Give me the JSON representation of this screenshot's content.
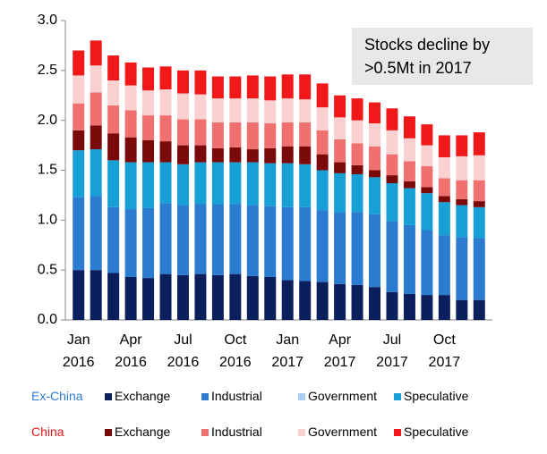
{
  "chart_data": {
    "type": "stacked-bar",
    "annotation": "Stocks decline by\n>0.5Mt in 2017",
    "categories": [
      "Jan\n2016",
      null,
      null,
      "Apr\n2016",
      null,
      null,
      "Jul\n2016",
      null,
      null,
      "Oct\n2016",
      null,
      null,
      "Jan\n2017",
      null,
      null,
      "Apr\n2017",
      null,
      null,
      "Jul\n2017",
      null,
      null,
      "Oct\n2017",
      null,
      null
    ],
    "ylim": [
      0,
      3
    ],
    "yticks": [
      {
        "value": 0,
        "label": "0.0"
      },
      0.5,
      {
        "value": 1,
        "label": "1.0"
      },
      1.5,
      {
        "value": 2,
        "label": "2.0"
      },
      2.5,
      {
        "value": 3,
        "label": "3.0"
      }
    ],
    "groups": [
      {
        "name": "Ex-China",
        "color": "#2f7ad0",
        "series": [
          {
            "name": "Exchange",
            "color": "#0b1f5c",
            "values": [
              0.5,
              0.5,
              0.47,
              0.43,
              0.42,
              0.46,
              0.45,
              0.46,
              0.45,
              0.46,
              0.44,
              0.43,
              0.4,
              0.39,
              0.38,
              0.36,
              0.35,
              0.33,
              0.28,
              0.26,
              0.25,
              0.25,
              0.2,
              0.2
            ]
          },
          {
            "name": "Industrial",
            "color": "#2b7bd0",
            "values": [
              0.73,
              0.74,
              0.66,
              0.68,
              0.7,
              0.71,
              0.7,
              0.7,
              0.71,
              0.7,
              0.71,
              0.71,
              0.73,
              0.74,
              0.72,
              0.72,
              0.73,
              0.73,
              0.71,
              0.69,
              0.65,
              0.6,
              0.63,
              0.62
            ]
          },
          {
            "name": "Government",
            "color": "#a9cdf0",
            "values": [
              0,
              0,
              0,
              0,
              0,
              0,
              0,
              0,
              0,
              0,
              0,
              0,
              0,
              0,
              0,
              0,
              0,
              0,
              0,
              0,
              0,
              0,
              0,
              0
            ]
          },
          {
            "name": "Speculative",
            "color": "#17a0d5",
            "values": [
              0.47,
              0.47,
              0.47,
              0.47,
              0.46,
              0.41,
              0.41,
              0.42,
              0.42,
              0.42,
              0.43,
              0.43,
              0.44,
              0.43,
              0.4,
              0.39,
              0.38,
              0.37,
              0.38,
              0.37,
              0.37,
              0.33,
              0.32,
              0.31
            ]
          }
        ]
      },
      {
        "name": "China",
        "color": "#e8141c",
        "series": [
          {
            "name": "Exchange",
            "color": "#7a0a0a",
            "values": [
              0.2,
              0.24,
              0.27,
              0.25,
              0.22,
              0.21,
              0.19,
              0.17,
              0.14,
              0.15,
              0.13,
              0.15,
              0.17,
              0.18,
              0.16,
              0.11,
              0.09,
              0.07,
              0.08,
              0.07,
              0.06,
              0.06,
              0.06,
              0.06
            ]
          },
          {
            "name": "Industrial",
            "color": "#f07070",
            "values": [
              0.27,
              0.33,
              0.28,
              0.27,
              0.25,
              0.26,
              0.26,
              0.26,
              0.26,
              0.25,
              0.27,
              0.25,
              0.24,
              0.24,
              0.24,
              0.23,
              0.22,
              0.24,
              0.21,
              0.2,
              0.21,
              0.18,
              0.19,
              0.21
            ]
          },
          {
            "name": "Government",
            "color": "#fbd0d0",
            "values": [
              0.28,
              0.27,
              0.25,
              0.25,
              0.25,
              0.26,
              0.26,
              0.25,
              0.24,
              0.24,
              0.24,
              0.23,
              0.24,
              0.23,
              0.23,
              0.22,
              0.23,
              0.23,
              0.24,
              0.23,
              0.21,
              0.21,
              0.24,
              0.25
            ]
          },
          {
            "name": "Speculative",
            "color": "#f01818",
            "values": [
              0.25,
              0.25,
              0.25,
              0.23,
              0.23,
              0.23,
              0.23,
              0.24,
              0.22,
              0.22,
              0.23,
              0.24,
              0.24,
              0.25,
              0.24,
              0.22,
              0.22,
              0.21,
              0.22,
              0.22,
              0.21,
              0.22,
              0.21,
              0.23
            ]
          }
        ]
      }
    ]
  }
}
